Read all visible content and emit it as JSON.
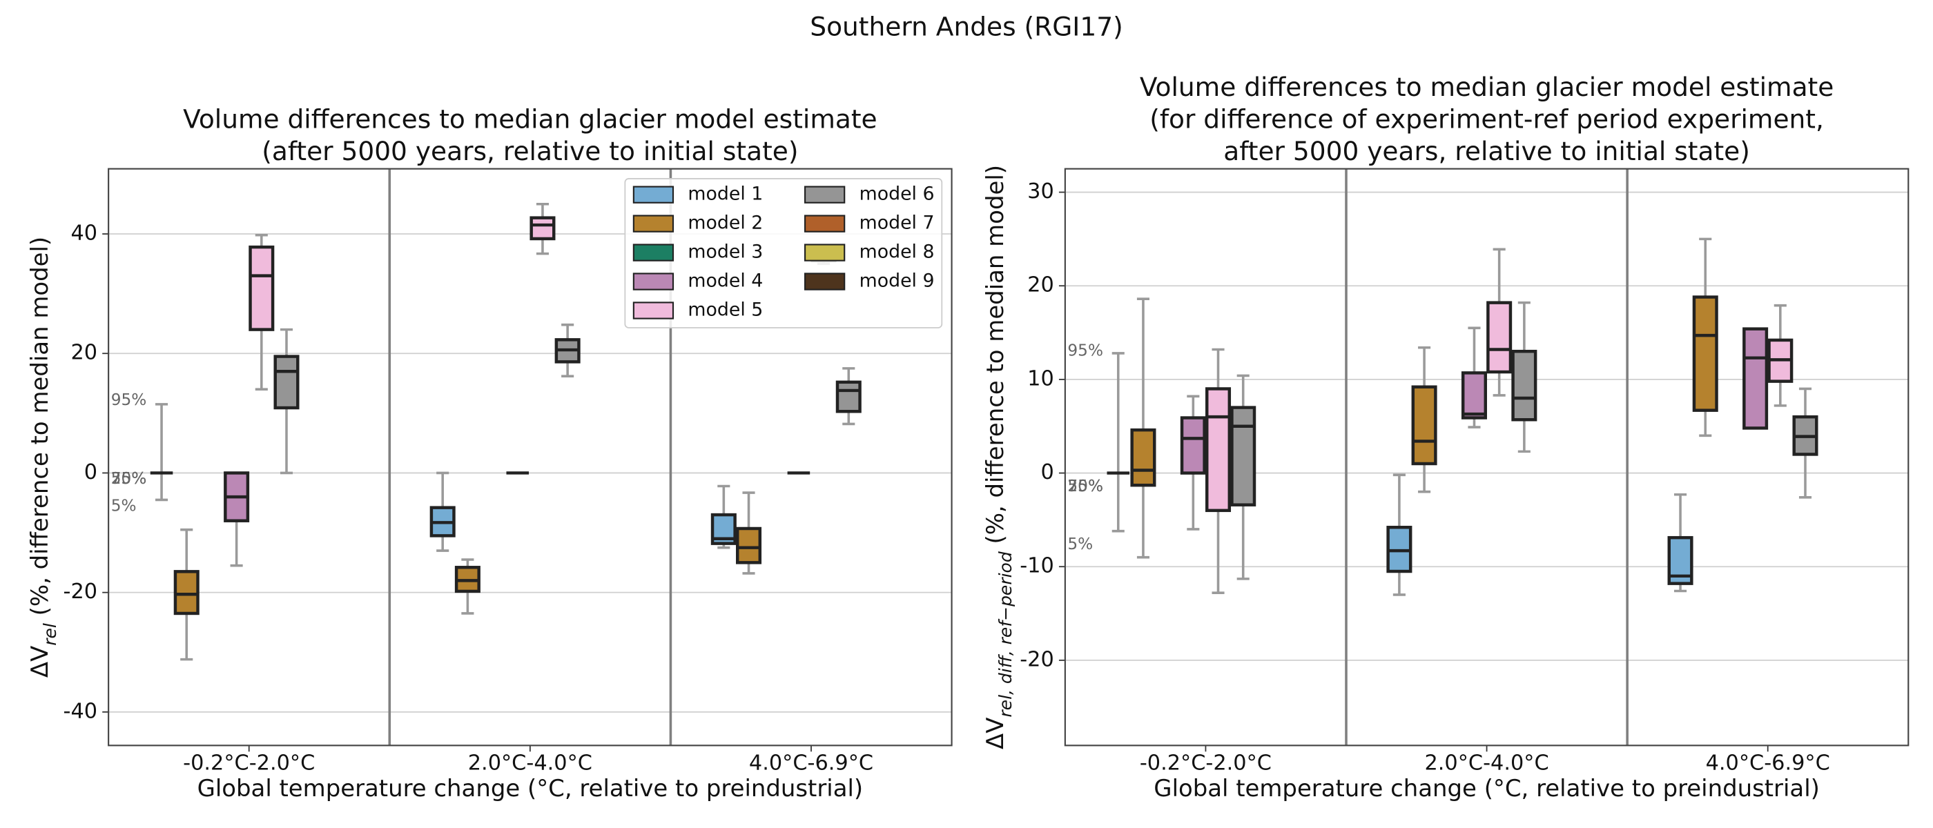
{
  "title": "Southern Andes (RGI17)",
  "chart_data": [
    {
      "type": "box",
      "title": [
        "Volume differences to median glacier model estimate",
        "(after 5000 years, relative to initial state)"
      ],
      "xlabel": "Global temperature change (°C, relative to preindustrial)",
      "ylabel": [
        "ΔV",
        "rel",
        " (%, difference to median model)"
      ],
      "categories": [
        "-0.2°C-2.0°C",
        "2.0°C-4.0°C",
        "4.0°C-6.9°C"
      ],
      "ylim": [
        -45.6,
        50.9
      ],
      "yticks": [
        -40,
        -20,
        0,
        20,
        40
      ],
      "grid": true,
      "legend": "upper right",
      "annotations": [
        "95%",
        "25%",
        "75%",
        "50%",
        "5%"
      ],
      "series": [
        {
          "name": "model 1",
          "color": "#74acd3",
          "values": [
            {
              "low": -4.5,
              "q1": 0,
              "median": 0,
              "q3": 0,
              "high": 11.5
            },
            {
              "low": -13,
              "q1": -10.5,
              "median": -8.3,
              "q3": -5.8,
              "high": 0
            },
            {
              "low": -12.5,
              "q1": -11.8,
              "median": -11,
              "q3": -7,
              "high": -2.2
            }
          ]
        },
        {
          "name": "model 2",
          "color": "#b5822e",
          "values": [
            {
              "low": -31.2,
              "q1": -23.5,
              "median": -20.3,
              "q3": -16.5,
              "high": -9.5
            },
            {
              "low": -23.5,
              "q1": -19.8,
              "median": -18,
              "q3": -15.8,
              "high": -14.5
            },
            {
              "low": -16.8,
              "q1": -15,
              "median": -12.5,
              "q3": -9.3,
              "high": -3.3
            }
          ]
        },
        {
          "name": "model 3",
          "color": "#1c7f63",
          "values": [
            null,
            null,
            null
          ]
        },
        {
          "name": "model 4",
          "color": "#bb88b5",
          "values": [
            {
              "low": -15.5,
              "q1": -8,
              "median": -4,
              "q3": 0,
              "high": 0
            },
            {
              "low": 0,
              "q1": 0,
              "median": 0,
              "q3": 0,
              "high": 0
            },
            {
              "low": 0,
              "q1": 0,
              "median": 0,
              "q3": 0,
              "high": 0
            }
          ]
        },
        {
          "name": "model 5",
          "color": "#f0bbdc",
          "values": [
            {
              "low": 14,
              "q1": 24,
              "median": 33,
              "q3": 37.8,
              "high": 39.8
            },
            {
              "low": 36.7,
              "q1": 39.2,
              "median": 41.5,
              "q3": 42.7,
              "high": 45
            },
            {
              "low": 35,
              "q1": 35.5,
              "median": 36.5,
              "q3": 37,
              "high": 38
            }
          ]
        },
        {
          "name": "model 6",
          "color": "#959595",
          "values": [
            {
              "low": 0,
              "q1": 10.9,
              "median": 17,
              "q3": 19.5,
              "high": 24
            },
            {
              "low": 16.2,
              "q1": 18.6,
              "median": 20.6,
              "q3": 22.3,
              "high": 24.8
            },
            {
              "low": 8.2,
              "q1": 10.3,
              "median": 13.8,
              "q3": 15.2,
              "high": 17.5
            }
          ]
        },
        {
          "name": "model 7",
          "color": "#b0602a",
          "values": [
            null,
            null,
            null
          ]
        },
        {
          "name": "model 8",
          "color": "#cbbe4f",
          "values": [
            null,
            null,
            null
          ]
        },
        {
          "name": "model 9",
          "color": "#4e341d",
          "values": [
            null,
            null,
            null
          ]
        }
      ]
    },
    {
      "type": "box",
      "title": [
        "Volume differences to median glacier model estimate",
        "(for difference of experiment-ref period experiment,",
        "after 5000 years, relative to initial state)"
      ],
      "xlabel": "Global temperature change (°C, relative to preindustrial)",
      "ylabel": [
        "ΔV",
        "rel, diff, ref−period",
        " (%, difference to median model)"
      ],
      "categories": [
        "-0.2°C-2.0°C",
        "2.0°C-4.0°C",
        "4.0°C-6.9°C"
      ],
      "ylim": [
        -29.1,
        32.5
      ],
      "yticks": [
        -20,
        -10,
        0,
        10,
        20,
        30
      ],
      "grid": true,
      "annotations": [
        "95%",
        "25%",
        "75%",
        "50%",
        "5%"
      ],
      "series": [
        {
          "color": "#74acd3",
          "values": [
            {
              "low": -6.2,
              "q1": 0,
              "median": 0,
              "q3": 0,
              "high": 12.8
            },
            {
              "low": -13,
              "q1": -10.5,
              "median": -8.3,
              "q3": -5.8,
              "high": -0.2
            },
            {
              "low": -12.6,
              "q1": -11.8,
              "median": -11,
              "q3": -6.9,
              "high": -2.3
            }
          ]
        },
        {
          "color": "#b5822e",
          "values": [
            {
              "low": -9,
              "q1": -1.3,
              "median": 0.3,
              "q3": 4.6,
              "high": 18.6
            },
            {
              "low": -2,
              "q1": 1,
              "median": 3.4,
              "q3": 9.2,
              "high": 13.4
            },
            {
              "low": 4,
              "q1": 6.7,
              "median": 14.7,
              "q3": 18.8,
              "high": 25
            }
          ]
        },
        {
          "color": "#1c7f63",
          "values": [
            null,
            null,
            null
          ]
        },
        {
          "color": "#bb88b5",
          "values": [
            {
              "low": -6,
              "q1": 0,
              "median": 3.7,
              "q3": 5.9,
              "high": 8.2
            },
            {
              "low": 4.9,
              "q1": 5.9,
              "median": 6.3,
              "q3": 10.7,
              "high": 15.5
            },
            {
              "low": 4.8,
              "q1": 4.8,
              "median": 12.3,
              "q3": 15.4,
              "high": 15.4
            }
          ]
        },
        {
          "color": "#f0bbdc",
          "values": [
            {
              "low": -12.8,
              "q1": -4,
              "median": 6,
              "q3": 9,
              "high": 13.2
            },
            {
              "low": 8.3,
              "q1": 10.8,
              "median": 13.2,
              "q3": 18.2,
              "high": 23.9
            },
            {
              "low": 7.2,
              "q1": 9.8,
              "median": 12.1,
              "q3": 14.2,
              "high": 17.9
            }
          ]
        },
        {
          "color": "#959595",
          "values": [
            {
              "low": -11.3,
              "q1": -3.4,
              "median": 5,
              "q3": 7,
              "high": 10.4
            },
            {
              "low": 2.3,
              "q1": 5.7,
              "median": 8,
              "q3": 13,
              "high": 18.2
            },
            {
              "low": -2.6,
              "q1": 2,
              "median": 3.9,
              "q3": 6,
              "high": 9
            }
          ]
        },
        {
          "color": "#b0602a",
          "values": [
            null,
            null,
            null
          ]
        },
        {
          "color": "#cbbe4f",
          "values": [
            null,
            null,
            null
          ]
        },
        {
          "color": "#4e341d",
          "values": [
            null,
            null,
            null
          ]
        }
      ]
    }
  ]
}
